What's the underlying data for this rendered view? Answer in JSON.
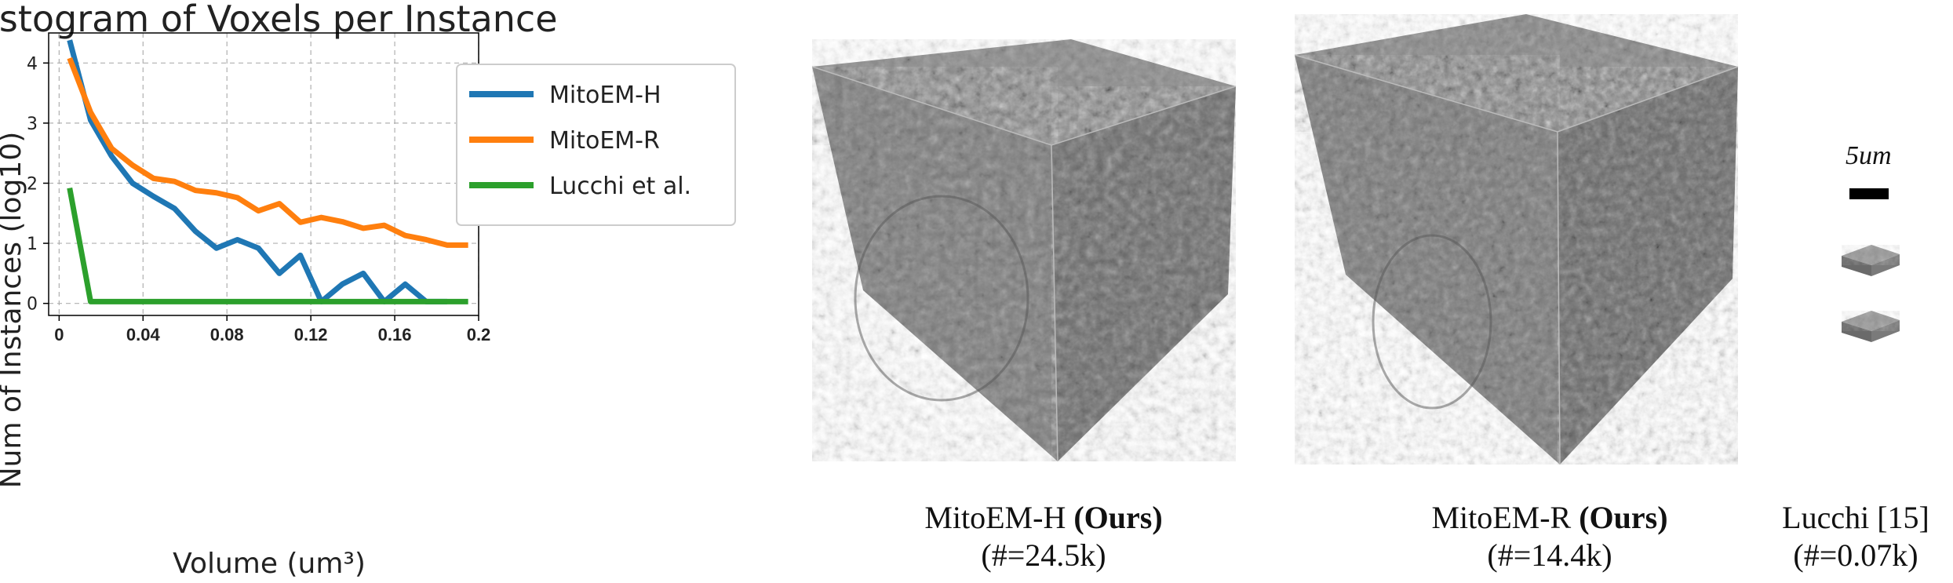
{
  "chart_data": {
    "type": "line",
    "title": "Histogram of Voxels per Instance",
    "xlabel": "Volume (um³)",
    "ylabel": "Num of Instances (log10)",
    "xlim": [
      -0.005,
      0.2
    ],
    "ylim": [
      -0.2,
      4.5
    ],
    "xticks": [
      0,
      0.04,
      0.08,
      0.12,
      0.16,
      0.2
    ],
    "xtick_labels": [
      "0",
      "0.04",
      "0.08",
      "0.12",
      "0.16",
      "0.2"
    ],
    "yticks": [
      0,
      1,
      2,
      3,
      4
    ],
    "ytick_labels": [
      "0",
      "1",
      "2",
      "3",
      "4"
    ],
    "grid": true,
    "legend_position": "top-right",
    "series": [
      {
        "name": "MitoEM-H",
        "color": "#1f77b4",
        "x": [
          0.005,
          0.015,
          0.025,
          0.035,
          0.045,
          0.055,
          0.065,
          0.075,
          0.085,
          0.095,
          0.105,
          0.115,
          0.125,
          0.135,
          0.145,
          0.155,
          0.165,
          0.175,
          0.185
        ],
        "y": [
          4.38,
          3.05,
          2.45,
          2.0,
          1.78,
          1.58,
          1.2,
          0.92,
          1.06,
          0.92,
          0.5,
          0.8,
          0.03,
          0.32,
          0.5,
          0.03,
          0.32,
          0.03,
          0.03
        ]
      },
      {
        "name": "MitoEM-R",
        "color": "#ff7f0e",
        "x": [
          0.005,
          0.015,
          0.025,
          0.035,
          0.045,
          0.055,
          0.065,
          0.075,
          0.085,
          0.095,
          0.105,
          0.115,
          0.125,
          0.135,
          0.145,
          0.155,
          0.165,
          0.175,
          0.185,
          0.195
        ],
        "y": [
          4.08,
          3.18,
          2.58,
          2.3,
          2.08,
          2.03,
          1.88,
          1.84,
          1.76,
          1.54,
          1.66,
          1.35,
          1.43,
          1.36,
          1.25,
          1.3,
          1.13,
          1.06,
          0.97,
          0.97
        ]
      },
      {
        "name": "Lucchi et al.",
        "color": "#2ca02c",
        "x": [
          0.005,
          0.015,
          0.195
        ],
        "y": [
          1.92,
          0.03,
          0.03
        ]
      }
    ]
  },
  "panels": {
    "cube1_caption_name": "MitoEM-H",
    "cube1_caption_bold": "(Ours)",
    "cube1_caption_count": "(#=24.5k)",
    "cube2_caption_name": "MitoEM-R",
    "cube2_caption_bold": "(Ours)",
    "cube2_caption_count": "(#=14.4k)",
    "lucchi_caption_name": "Lucchi [15]",
    "lucchi_caption_count": "(#=0.07k)",
    "scale_bar_label": "5um"
  }
}
